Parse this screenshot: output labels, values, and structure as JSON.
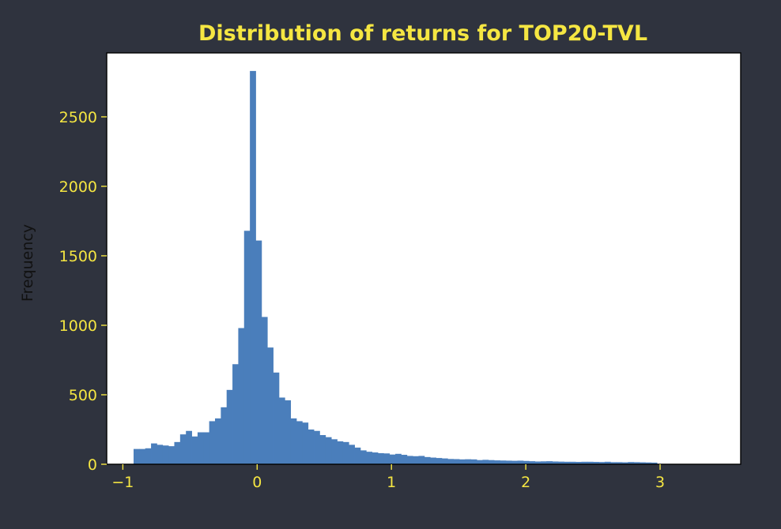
{
  "chart_data": {
    "type": "bar",
    "title": "Distribution of returns for TOP20-TVL",
    "xlabel": "",
    "ylabel": "Frequency",
    "xlim": [
      -1.12,
      3.6
    ],
    "ylim": [
      0,
      2960
    ],
    "xticks": [
      -1,
      0,
      1,
      2,
      3
    ],
    "xtick_labels": [
      "−1",
      "0",
      "1",
      "2",
      "3"
    ],
    "yticks": [
      0,
      500,
      1000,
      1500,
      2000,
      2500
    ],
    "ytick_labels": [
      "0",
      "500",
      "1000",
      "1500",
      "2000",
      "2500"
    ],
    "grid": false,
    "legend": "none",
    "bin_start": -0.92,
    "bin_width": 0.0433,
    "bar_color": "#4a7ebb",
    "axes_background": "#ffffff",
    "figure_background": "#2f333e",
    "text_color": "#f5e642",
    "values": [
      110,
      110,
      115,
      150,
      140,
      135,
      130,
      160,
      215,
      240,
      200,
      230,
      230,
      310,
      330,
      410,
      535,
      720,
      980,
      1680,
      2830,
      1610,
      1060,
      840,
      660,
      480,
      460,
      330,
      310,
      300,
      250,
      240,
      210,
      195,
      180,
      165,
      160,
      140,
      120,
      100,
      90,
      85,
      80,
      78,
      70,
      75,
      68,
      60,
      58,
      60,
      52,
      48,
      45,
      42,
      38,
      37,
      35,
      36,
      35,
      30,
      32,
      30,
      28,
      27,
      26,
      25,
      26,
      24,
      22,
      20,
      21,
      22,
      20,
      19,
      18,
      18,
      17,
      18,
      18,
      17,
      16,
      18,
      15,
      15,
      14,
      16,
      15,
      14,
      13,
      12
    ]
  }
}
